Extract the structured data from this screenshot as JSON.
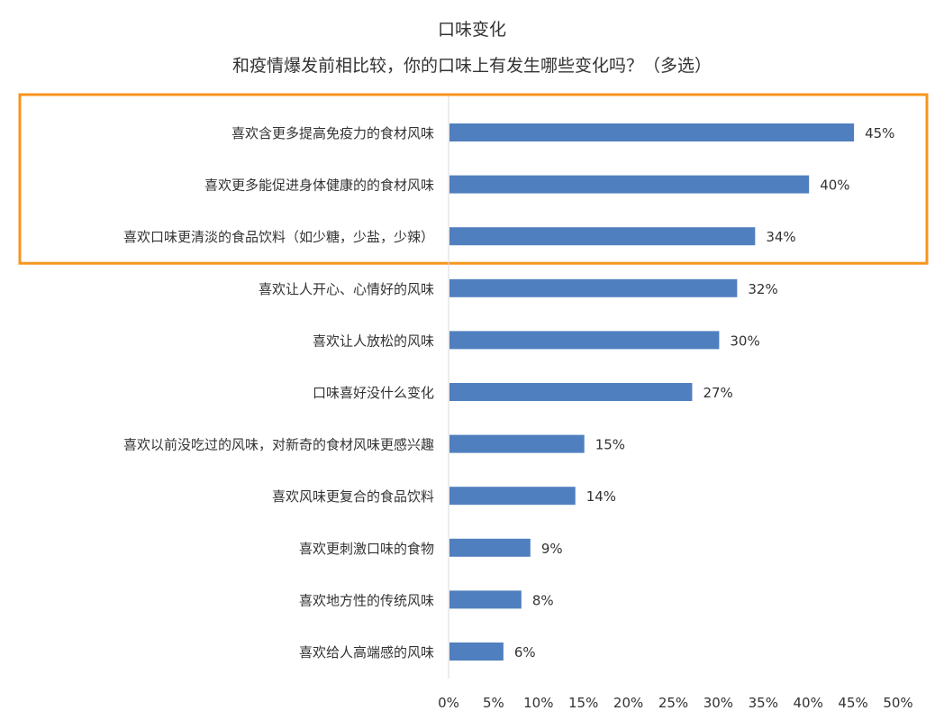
{
  "chart_data": {
    "type": "bar",
    "orientation": "horizontal",
    "title": "口味变化",
    "subtitle": "和疫情爆发前相比较，你的口味上有发生哪些变化吗？（多选）",
    "categories": [
      "喜欢含更多提高免疫力的食材风味",
      "喜欢更多能促进身体健康的的食材风味",
      "喜欢口味更清淡的食品饮料（如少糖，少盐，少辣）",
      "喜欢让人开心、心情好的风味",
      "喜欢让人放松的风味",
      "口味喜好没什么变化",
      "喜欢以前没吃过的风味，对新奇的食材风味更感兴趣",
      "喜欢风味更复合的食品饮料",
      "喜欢更刺激口味的食物",
      "喜欢地方性的传统风味",
      "喜欢给人高端感的风味"
    ],
    "values": [
      45,
      40,
      34,
      32,
      30,
      27,
      15,
      14,
      9,
      8,
      6
    ],
    "value_labels": [
      "45%",
      "40%",
      "34%",
      "32%",
      "30%",
      "27%",
      "15%",
      "14%",
      "9%",
      "8%",
      "6%"
    ],
    "xlim": [
      0,
      50
    ],
    "xticks": [
      "0%",
      "5%",
      "10%",
      "15%",
      "20%",
      "25%",
      "30%",
      "35%",
      "40%",
      "45%",
      "50%"
    ],
    "bar_color": "#4f7fbe",
    "highlight_color": "#f7941d",
    "highlighted_categories": [
      0,
      1,
      2
    ],
    "grid": false,
    "legend": "none"
  }
}
